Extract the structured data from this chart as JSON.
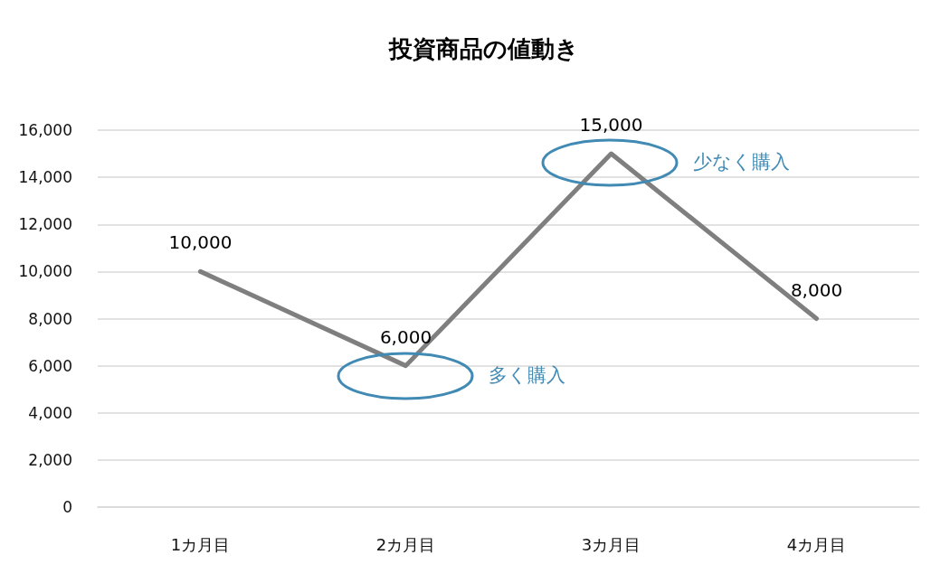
{
  "chart_data": {
    "type": "line",
    "title": "投資商品の値動き",
    "categories": [
      "1カ月目",
      "2カ月目",
      "3カ月目",
      "4カ月目"
    ],
    "series": [
      {
        "color": "#7f7f7f",
        "values": [
          10000,
          6000,
          15000,
          8000
        ],
        "value_labels": [
          "10,000",
          "6,000",
          "15,000",
          "8,000"
        ]
      }
    ],
    "ylim": [
      0,
      16000
    ],
    "yticks": [
      {
        "value": 0,
        "label": "0"
      },
      {
        "value": 2000,
        "label": "2,000"
      },
      {
        "value": 4000,
        "label": "4,000"
      },
      {
        "value": 6000,
        "label": "6,000"
      },
      {
        "value": 8000,
        "label": "8,000"
      },
      {
        "value": 10000,
        "label": "10,000"
      },
      {
        "value": 12000,
        "label": "12,000"
      },
      {
        "value": 14000,
        "label": "14,000"
      },
      {
        "value": 16000,
        "label": "16,000"
      }
    ],
    "grid": "y",
    "marker": "none",
    "line_style": "solid",
    "annotations": [
      "多く購入",
      "少なく購入"
    ]
  }
}
